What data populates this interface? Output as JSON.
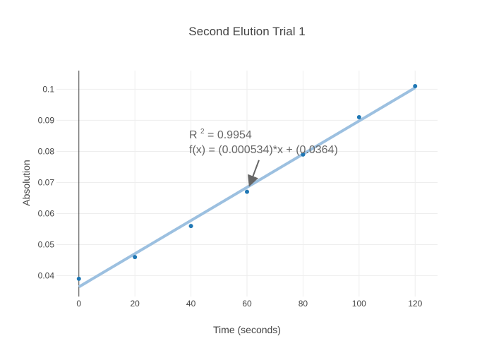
{
  "chart_data": {
    "type": "scatter",
    "title": "Second Elution Trial 1",
    "xlabel": "Time (seconds)",
    "ylabel": "Absolution",
    "xlim": [
      -8,
      128
    ],
    "ylim": [
      0.0333,
      0.106
    ],
    "x_ticks": [
      0,
      20,
      40,
      60,
      80,
      100,
      120
    ],
    "y_ticks": [
      0.04,
      0.05,
      0.06,
      0.07,
      0.08,
      0.09,
      0.1
    ],
    "grid": true,
    "series": [
      {
        "x": [
          0,
          20,
          40,
          60,
          80,
          100,
          120
        ],
        "values": [
          0.039,
          0.046,
          0.056,
          0.067,
          0.079,
          0.091,
          0.101
        ],
        "color": "#1f77b4",
        "mode": "markers"
      },
      {
        "x": [
          0,
          120
        ],
        "values": [
          0.0364,
          0.10048
        ],
        "color": "#9cc0e0",
        "mode": "lines",
        "fit": {
          "slope": 0.000534,
          "intercept": 0.0364
        }
      }
    ],
    "annotation": {
      "r2_prefix": "R",
      "r2_exponent": "2",
      "r2_value": " = 0.9954",
      "equation": "f(x) = (0.000534)*x + (0.0364)",
      "arrow_target": {
        "x": 61,
        "y": 0.069
      }
    }
  }
}
